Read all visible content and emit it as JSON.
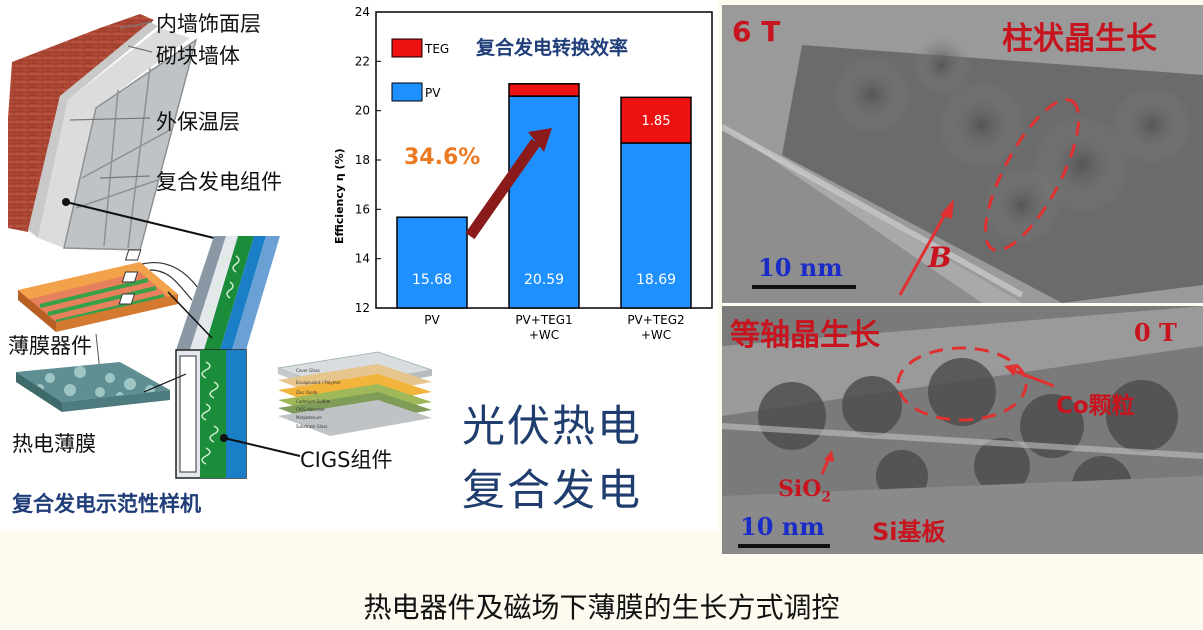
{
  "left": {
    "wall_labels": [
      "内墙饰面层",
      "砌块墙体",
      "外保温层",
      "复合发电组件"
    ],
    "device_labels": {
      "thin_film": "薄膜器件",
      "thermo_film": "热电薄膜",
      "cigs": "CIGS组件"
    },
    "demo_title": "复合发电示范性样机",
    "pv_teg_line1": "光伏热电",
    "pv_teg_line2": "复合发电",
    "cigs_layers": [
      "Cover Glass",
      "Encapsulant / Polymer",
      "Zinc Oxide",
      "Cadmium Sulfide",
      "CIGS Absorber",
      "Molybdenum",
      "Substrate Glass"
    ]
  },
  "chart_data": {
    "type": "bar",
    "title": "复合发电转换效率",
    "ylabel": "Efficiency η (%)",
    "ylim": [
      12,
      24
    ],
    "yticks": [
      12,
      14,
      16,
      18,
      20,
      22,
      24
    ],
    "categories": [
      "PV",
      "PV+TEG1\n+WC",
      "PV+TEG2\n+WC"
    ],
    "series": [
      {
        "name": "PV",
        "color": "#1e90ff",
        "values": [
          15.68,
          20.59,
          18.69
        ],
        "labels": [
          "15.68",
          "20.59",
          "18.69"
        ]
      },
      {
        "name": "TEG",
        "color": "#ee1111",
        "values": [
          0,
          0.5,
          1.85
        ],
        "labels": [
          "",
          "",
          "1.85"
        ]
      }
    ],
    "annotation": "34.6%",
    "legend": "top-left"
  },
  "tem": {
    "top": {
      "field": "6 T",
      "mode": "柱状晶生长",
      "b_label": "B",
      "scale": "10 nm"
    },
    "bottom": {
      "mode": "等轴晶生长",
      "field": "0 T",
      "co_label": "Co颗粒",
      "sio2": "SiO",
      "sio2_sub": "2",
      "substrate": "Si基板",
      "scale": "10 nm"
    }
  },
  "caption": "热电器件及磁场下薄膜的生长方式调控"
}
